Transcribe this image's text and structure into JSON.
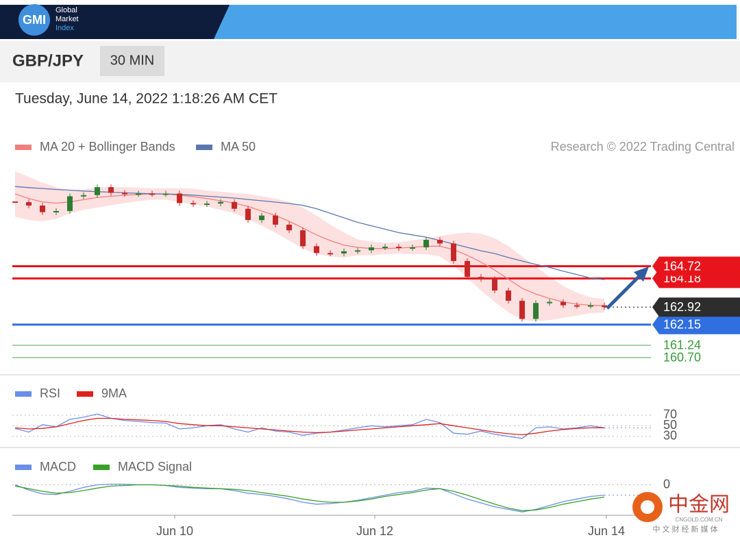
{
  "header": {
    "logo": "GMI",
    "brand": [
      "Global",
      "Market",
      "Index"
    ],
    "symbol": "GBP/JPY",
    "interval": "30 MIN",
    "timestamp": "Tuesday, June 14, 2022 1:18:26 AM CET",
    "attribution": "Research © 2022 Trading Central"
  },
  "watermark": {
    "name": "中金网",
    "site": "CNGOLD.COM.CN",
    "slogan": "中 文 财 经 新 媒 体"
  },
  "chart_data": [
    {
      "type": "candlestick",
      "up_color": "#2e7d32",
      "down_color": "#c62828",
      "values": [
        167.54,
        167.39,
        167.1,
        167.15,
        167.8,
        167.85,
        168.2,
        167.95,
        167.9,
        167.92,
        167.9,
        167.92,
        167.5,
        167.45,
        167.48,
        167.55,
        167.25,
        166.75,
        166.95,
        166.55,
        166.3,
        165.6,
        165.3,
        165.28,
        165.38,
        165.42,
        165.55,
        165.58,
        165.52,
        165.55,
        165.88,
        165.72,
        164.95,
        164.25,
        164.15,
        163.65,
        163.2,
        162.4,
        163.1,
        163.15,
        163.0,
        162.98,
        163.0,
        162.92
      ],
      "series": [
        {
          "name": "MA 20 + Bollinger Bands",
          "color": "#f08080",
          "band_color": "#fde0e0",
          "values": [
            167.9,
            167.7,
            167.55,
            167.5,
            167.55,
            167.65,
            167.75,
            167.8,
            167.85,
            167.88,
            167.9,
            167.9,
            167.85,
            167.78,
            167.7,
            167.6,
            167.5,
            167.35,
            167.15,
            166.95,
            166.7,
            166.4,
            166.1,
            165.85,
            165.65,
            165.55,
            165.5,
            165.5,
            165.52,
            165.55,
            165.6,
            165.6,
            165.45,
            165.2,
            164.9,
            164.55,
            164.15,
            163.75,
            163.5,
            163.3,
            163.15,
            163.05,
            163.0,
            162.98
          ],
          "upper": [
            168.9,
            168.65,
            168.4,
            168.2,
            168.05,
            168.1,
            168.2,
            168.2,
            168.2,
            168.18,
            168.15,
            168.15,
            168.15,
            168.13,
            168.05,
            168.0,
            167.95,
            167.9,
            167.8,
            167.7,
            167.55,
            167.3,
            166.95,
            166.55,
            166.2,
            165.9,
            165.8,
            165.75,
            165.77,
            165.85,
            165.95,
            166.05,
            166.15,
            166.2,
            166.15,
            165.95,
            165.6,
            165.15,
            164.7,
            164.25,
            163.85,
            163.55,
            163.35,
            163.28
          ],
          "lower": [
            166.9,
            166.75,
            166.7,
            166.8,
            167.05,
            167.2,
            167.3,
            167.4,
            167.5,
            167.58,
            167.65,
            167.65,
            167.55,
            167.43,
            167.35,
            167.2,
            167.05,
            166.8,
            166.5,
            166.2,
            165.85,
            165.5,
            165.25,
            165.15,
            165.1,
            165.2,
            165.2,
            165.25,
            165.27,
            165.25,
            165.25,
            165.15,
            164.75,
            164.2,
            163.65,
            163.15,
            162.7,
            162.35,
            162.3,
            162.35,
            162.45,
            162.55,
            162.65,
            162.68
          ]
        },
        {
          "name": "MA 50",
          "color": "#5a78b0",
          "values": [
            168.23,
            168.18,
            168.14,
            168.1,
            168.07,
            168.03,
            168.0,
            167.98,
            167.95,
            167.93,
            167.91,
            167.9,
            167.88,
            167.85,
            167.8,
            167.76,
            167.72,
            167.66,
            167.6,
            167.54,
            167.48,
            167.4,
            167.25,
            167.05,
            166.85,
            166.65,
            166.5,
            166.35,
            166.2,
            166.1,
            166.0,
            165.85,
            165.7,
            165.55,
            165.4,
            165.28,
            165.1,
            164.95,
            164.8,
            164.67,
            164.5,
            164.35,
            164.2,
            164.13
          ]
        }
      ],
      "levels": [
        {
          "value": 164.72,
          "color": "#e8141b",
          "boxed": true,
          "line": "solid"
        },
        {
          "value": 164.18,
          "color": "#e8141b",
          "boxed": true,
          "line": "solid"
        },
        {
          "value": 162.92,
          "color": "#2d2d2d",
          "boxed": true,
          "line": "dotted"
        },
        {
          "value": 162.15,
          "color": "#2f6fe0",
          "boxed": true,
          "line": "solid"
        },
        {
          "value": 161.24,
          "color": "#3a9a3a",
          "boxed": false,
          "line": "solid"
        },
        {
          "value": 160.7,
          "label": "160.70",
          "color": "#3a9a3a",
          "boxed": false,
          "line": "solid"
        }
      ],
      "xlim": [
        0,
        43
      ],
      "ylim": [
        160.0,
        169.2
      ],
      "xticks": [
        {
          "value": 11.65,
          "label": "Jun 10"
        },
        {
          "value": 26.25,
          "label": "Jun 12"
        },
        {
          "value": 43.15,
          "label": "Jun 14"
        }
      ]
    },
    {
      "type": "line",
      "series": [
        {
          "name": "RSI",
          "color": "#6a8fe6",
          "values": [
            45,
            38,
            52,
            48,
            62,
            66,
            72,
            64,
            60,
            58,
            56,
            55,
            44,
            46,
            50,
            52,
            44,
            38,
            46,
            40,
            38,
            32,
            36,
            38,
            42,
            46,
            50,
            48,
            50,
            52,
            62,
            56,
            36,
            34,
            40,
            34,
            30,
            26,
            46,
            48,
            44,
            46,
            50,
            46
          ]
        },
        {
          "name": "9MA",
          "color": "#e02020",
          "values": [
            46,
            44,
            45,
            48,
            54,
            60,
            64,
            64,
            62,
            61,
            60,
            58,
            54,
            52,
            50,
            50,
            48,
            46,
            44,
            42,
            40,
            38,
            37,
            38,
            40,
            42,
            44,
            46,
            48,
            50,
            52,
            54,
            50,
            46,
            42,
            38,
            35,
            33,
            36,
            40,
            43,
            45,
            46,
            46
          ]
        }
      ],
      "xlim": [
        0,
        43
      ],
      "ylim": [
        13,
        84
      ],
      "yticks": [
        30,
        50,
        70
      ]
    },
    {
      "type": "line",
      "series": [
        {
          "name": "MACD",
          "color": "#6a8fe6",
          "values": [
            0.0,
            -0.08,
            -0.14,
            -0.15,
            -0.1,
            -0.04,
            0.0,
            0.01,
            0.01,
            0.0,
            0.0,
            -0.01,
            -0.04,
            -0.05,
            -0.06,
            -0.06,
            -0.09,
            -0.13,
            -0.15,
            -0.18,
            -0.22,
            -0.27,
            -0.3,
            -0.29,
            -0.27,
            -0.24,
            -0.2,
            -0.16,
            -0.12,
            -0.1,
            -0.05,
            -0.06,
            -0.14,
            -0.22,
            -0.28,
            -0.34,
            -0.38,
            -0.42,
            -0.38,
            -0.32,
            -0.26,
            -0.22,
            -0.18,
            -0.16
          ]
        },
        {
          "name": "MACD Signal",
          "color": "#3aa02a",
          "values": [
            -0.02,
            -0.06,
            -0.1,
            -0.13,
            -0.12,
            -0.09,
            -0.05,
            -0.02,
            -0.01,
            0.0,
            0.0,
            -0.01,
            -0.02,
            -0.04,
            -0.05,
            -0.06,
            -0.07,
            -0.09,
            -0.12,
            -0.15,
            -0.18,
            -0.22,
            -0.25,
            -0.27,
            -0.27,
            -0.25,
            -0.22,
            -0.18,
            -0.15,
            -0.12,
            -0.08,
            -0.06,
            -0.1,
            -0.16,
            -0.23,
            -0.3,
            -0.36,
            -0.4,
            -0.39,
            -0.35,
            -0.3,
            -0.26,
            -0.22,
            -0.19
          ]
        }
      ],
      "xlim": [
        0,
        43
      ],
      "ylim": [
        -0.45,
        0.08
      ],
      "yticks": [
        0
      ]
    }
  ]
}
